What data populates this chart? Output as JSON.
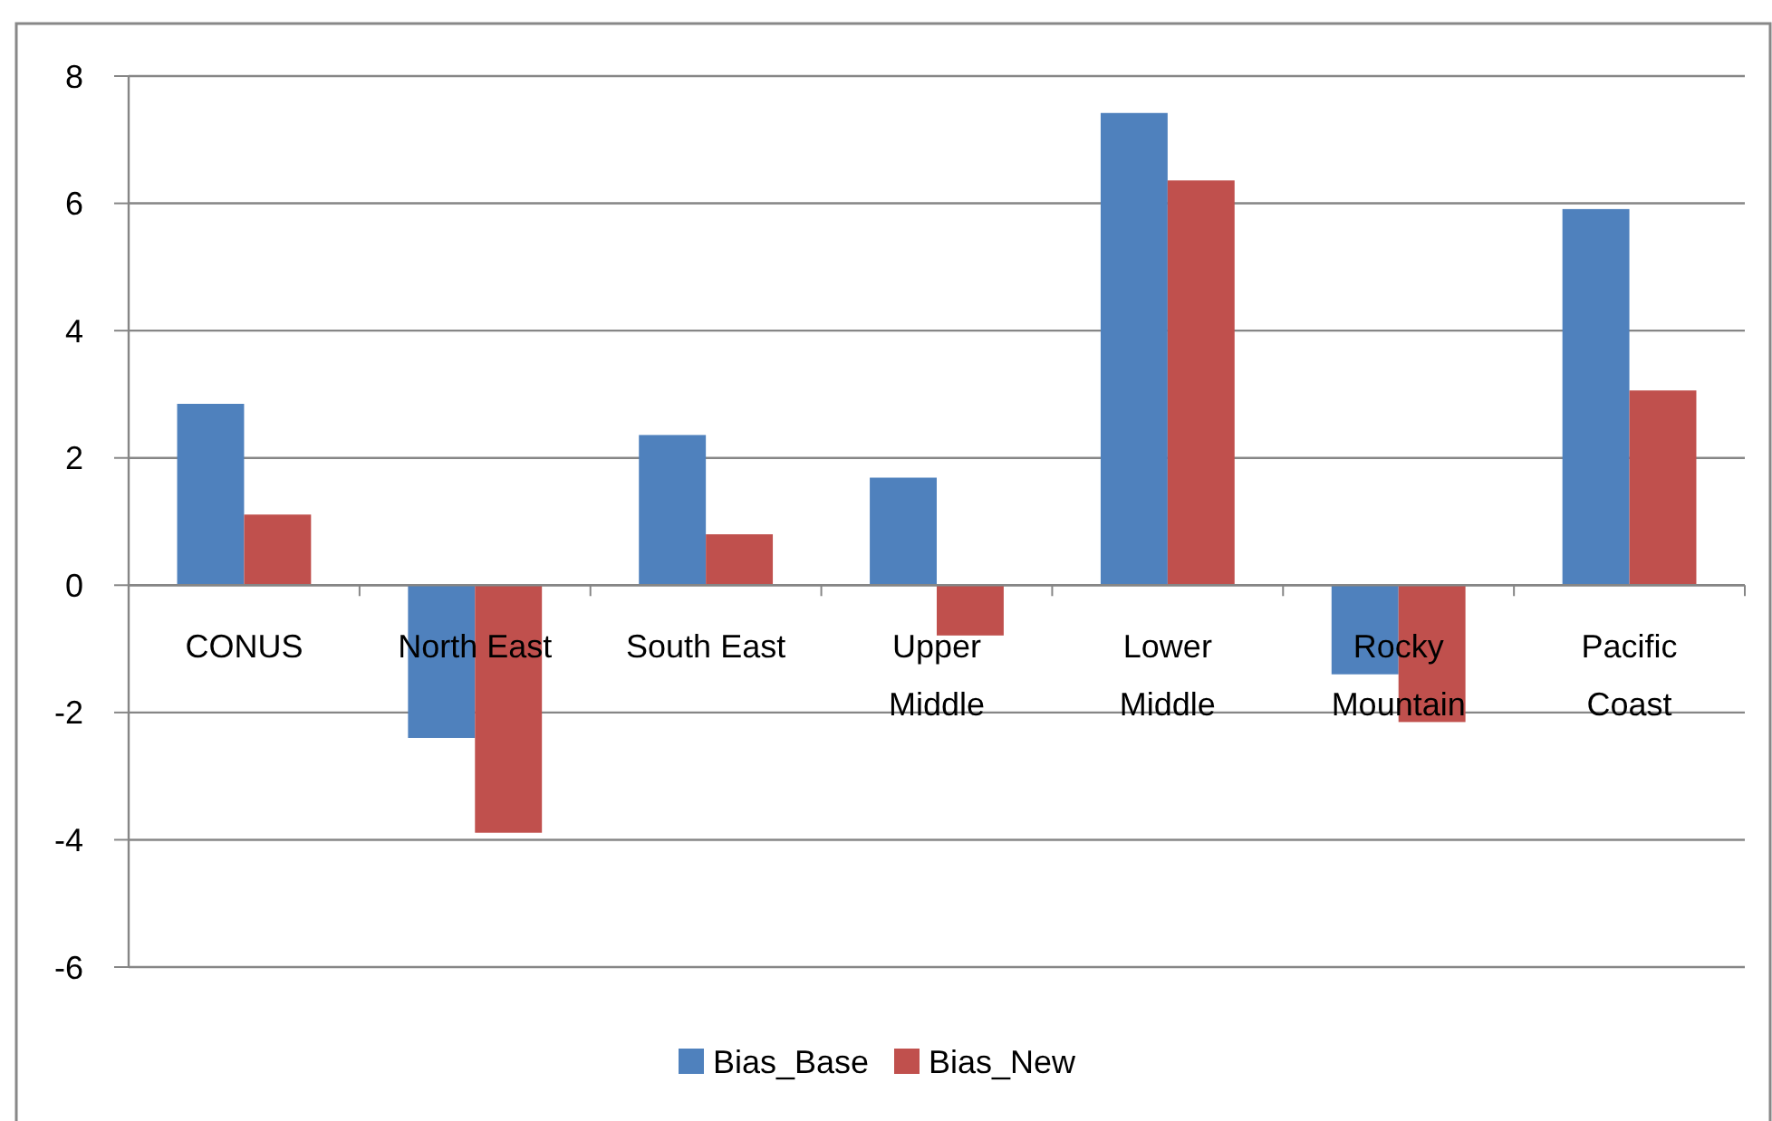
{
  "chart_data": {
    "type": "bar",
    "categories": [
      "CONUS",
      "North East",
      "South East",
      "Upper Middle",
      "Lower Middle",
      "Rocky Mountain",
      "Pacific Coast"
    ],
    "series": [
      {
        "name": "Bias_Base",
        "color": "#4f81bd",
        "values": [
          2.85,
          -2.4,
          2.36,
          1.69,
          7.42,
          -1.4,
          5.91
        ]
      },
      {
        "name": "Bias_New",
        "color": "#c0504d",
        "values": [
          1.11,
          -3.89,
          0.8,
          -0.79,
          6.36,
          -2.15,
          3.06
        ]
      }
    ],
    "ylim": [
      -6,
      8
    ],
    "yticks": [
      -6,
      -4,
      -2,
      0,
      2,
      4,
      6,
      8
    ],
    "grid": "y",
    "legend": "bottom"
  }
}
